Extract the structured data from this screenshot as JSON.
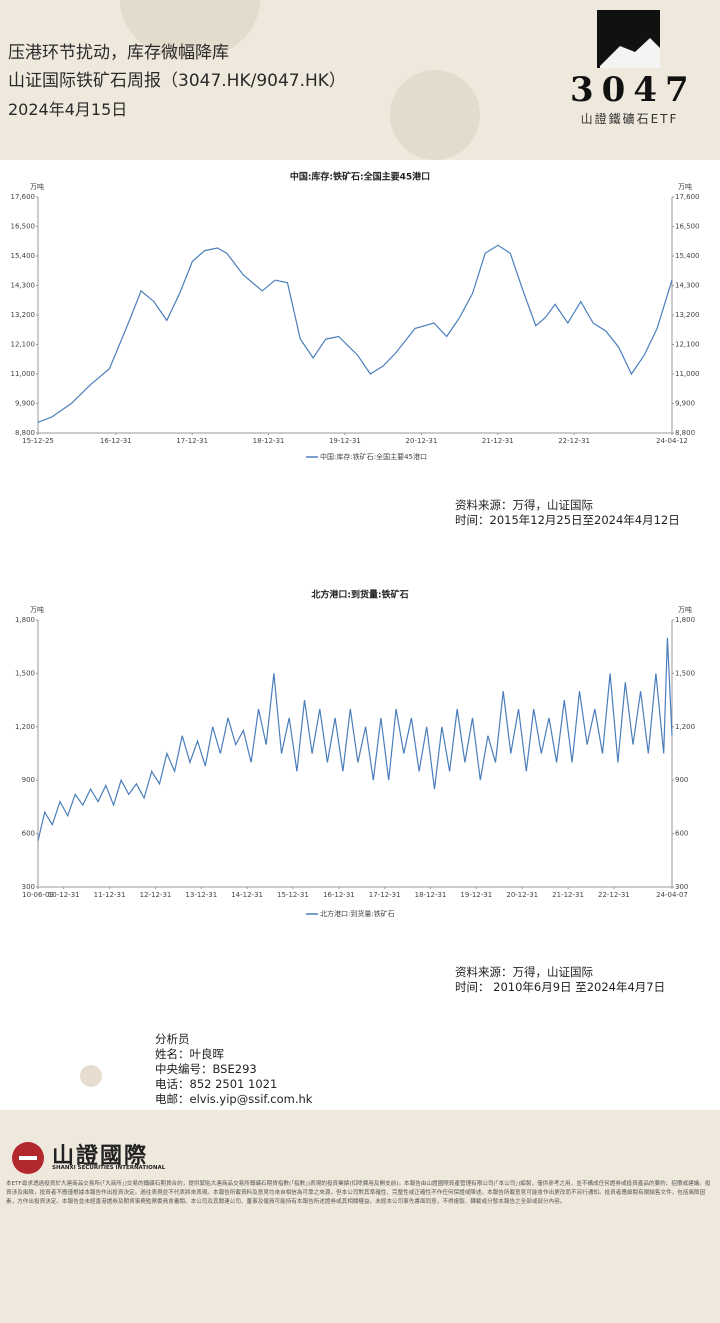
{
  "header": {
    "title": "压港环节扰动，库存微幅降库",
    "subtitle": "山证国际铁矿石周报（3047.HK/9047.HK）",
    "date": "2024年4月15日",
    "logo_code": "3047",
    "logo_name": "山證鐵礦石ETF"
  },
  "chart_data": [
    {
      "type": "line",
      "title": "中国:库存:铁矿石:全国主要45港口",
      "y_unit": "万吨",
      "xlim": [
        "2015-12-25",
        "2024-04-12"
      ],
      "xticks": [
        {
          "value": "2015-12-25",
          "label": "15-12-25"
        },
        {
          "value": "2016-12-31",
          "label": "16-12-31"
        },
        {
          "value": "2017-12-31",
          "label": "17-12-31"
        },
        {
          "value": "2018-12-31",
          "label": "18-12-31"
        },
        {
          "value": "2019-12-31",
          "label": "19-12-31"
        },
        {
          "value": "2020-12-31",
          "label": "20-12-31"
        },
        {
          "value": "2021-12-31",
          "label": "21-12-31"
        },
        {
          "value": "2022-12-31",
          "label": "22-12-31"
        },
        {
          "value": "2024-04-12",
          "label": "24-04-12"
        }
      ],
      "ylim": [
        8800,
        17600
      ],
      "yticks": [
        {
          "value": 8800,
          "label": "8,800"
        },
        {
          "value": 9900,
          "label": "9,900"
        },
        {
          "value": 11000,
          "label": "11,000"
        },
        {
          "value": 12100,
          "label": "12,100"
        },
        {
          "value": 13200,
          "label": "13,200"
        },
        {
          "value": 14300,
          "label": "14,300"
        },
        {
          "value": 15400,
          "label": "15,400"
        },
        {
          "value": 16500,
          "label": "16,500"
        },
        {
          "value": 17600,
          "label": "17,600"
        }
      ],
      "grid": false,
      "x": [
        "2015-12-25",
        "2016-03-01",
        "2016-06-01",
        "2016-09-01",
        "2016-12-01",
        "2017-03-01",
        "2017-05-01",
        "2017-07-01",
        "2017-09-01",
        "2017-11-01",
        "2018-01-01",
        "2018-03-01",
        "2018-05-01",
        "2018-06-15",
        "2018-09-01",
        "2018-12-01",
        "2019-02-01",
        "2019-04-01",
        "2019-06-01",
        "2019-08-01",
        "2019-10-01",
        "2019-12-01",
        "2020-03-01",
        "2020-05-01",
        "2020-07-01",
        "2020-09-01",
        "2020-12-01",
        "2021-03-01",
        "2021-05-01",
        "2021-07-01",
        "2021-09-01",
        "2021-11-01",
        "2022-01-01",
        "2022-03-01",
        "2022-05-01",
        "2022-07-01",
        "2022-08-15",
        "2022-10-01",
        "2022-12-01",
        "2023-02-01",
        "2023-04-01",
        "2023-06-01",
        "2023-08-01",
        "2023-10-01",
        "2023-12-01",
        "2024-02-01",
        "2024-04-12"
      ],
      "series": [
        {
          "name": "中国:库存:铁矿石:全国主要45港口",
          "color": "#4a7ebb",
          "values": [
            9200,
            9400,
            9900,
            10600,
            11200,
            12900,
            14100,
            13700,
            13000,
            14000,
            15200,
            15600,
            15700,
            15500,
            14700,
            14100,
            14500,
            14400,
            12300,
            11600,
            12300,
            12400,
            11700,
            11000,
            11300,
            11800,
            12700,
            12900,
            12400,
            13100,
            14000,
            15500,
            15800,
            15500,
            14100,
            12800,
            13100,
            13600,
            12900,
            13700,
            12900,
            12600,
            12000,
            11000,
            11700,
            12700,
            14500
          ]
        }
      ],
      "source": "资料来源：万得，山证国际",
      "period": "时间：2015年12月25日至2024年4月12日"
    },
    {
      "type": "line",
      "title": "北方港口:到货量:铁矿石",
      "y_unit": "万吨",
      "xlim": [
        "2010-06-09",
        "2024-04-07"
      ],
      "xticks": [
        {
          "value": "2010-06-09",
          "label": "10-06-09"
        },
        {
          "value": "2010-12-31",
          "label": "10-12-31"
        },
        {
          "value": "2011-12-31",
          "label": "11-12-31"
        },
        {
          "value": "2012-12-31",
          "label": "12-12-31"
        },
        {
          "value": "2013-12-31",
          "label": "13-12-31"
        },
        {
          "value": "2014-12-31",
          "label": "14-12-31"
        },
        {
          "value": "2015-12-31",
          "label": "15-12-31"
        },
        {
          "value": "2016-12-31",
          "label": "16-12-31"
        },
        {
          "value": "2017-12-31",
          "label": "17-12-31"
        },
        {
          "value": "2018-12-31",
          "label": "18-12-31"
        },
        {
          "value": "2019-12-31",
          "label": "19-12-31"
        },
        {
          "value": "2020-12-31",
          "label": "20-12-31"
        },
        {
          "value": "2021-12-31",
          "label": "21-12-31"
        },
        {
          "value": "2022-12-31",
          "label": "22-12-31"
        },
        {
          "value": "2024-04-07",
          "label": "24-04-07"
        }
      ],
      "ylim": [
        300,
        1800
      ],
      "yticks": [
        300,
        600,
        900,
        {
          "value": 1200,
          "label": "1,200"
        },
        {
          "value": 1500,
          "label": "1,500"
        },
        {
          "value": 1800,
          "label": "1,800"
        }
      ],
      "grid": false,
      "x": [
        "2010-06-09",
        "2010-08-01",
        "2010-10-01",
        "2010-12-01",
        "2011-02-01",
        "2011-04-01",
        "2011-06-01",
        "2011-08-01",
        "2011-10-01",
        "2011-12-01",
        "2012-02-01",
        "2012-04-01",
        "2012-06-01",
        "2012-08-01",
        "2012-10-01",
        "2012-12-01",
        "2013-02-01",
        "2013-04-01",
        "2013-06-01",
        "2013-08-01",
        "2013-10-01",
        "2013-12-01",
        "2014-02-01",
        "2014-04-01",
        "2014-06-01",
        "2014-08-01",
        "2014-10-01",
        "2014-12-01",
        "2015-02-01",
        "2015-04-01",
        "2015-06-01",
        "2015-08-01",
        "2015-10-01",
        "2015-12-01",
        "2016-02-01",
        "2016-04-01",
        "2016-06-01",
        "2016-08-01",
        "2016-10-01",
        "2016-12-01",
        "2017-02-01",
        "2017-04-01",
        "2017-06-01",
        "2017-08-01",
        "2017-10-01",
        "2017-12-01",
        "2018-02-01",
        "2018-04-01",
        "2018-06-01",
        "2018-08-01",
        "2018-10-01",
        "2018-12-01",
        "2019-02-01",
        "2019-04-01",
        "2019-06-01",
        "2019-08-01",
        "2019-10-01",
        "2019-12-01",
        "2020-02-01",
        "2020-04-01",
        "2020-06-01",
        "2020-08-01",
        "2020-10-01",
        "2020-12-01",
        "2021-02-01",
        "2021-04-01",
        "2021-06-01",
        "2021-08-01",
        "2021-10-01",
        "2021-12-01",
        "2022-02-01",
        "2022-04-01",
        "2022-06-01",
        "2022-08-01",
        "2022-10-01",
        "2022-12-01",
        "2023-02-01",
        "2023-04-01",
        "2023-06-01",
        "2023-08-01",
        "2023-10-01",
        "2023-12-01",
        "2024-02-01",
        "2024-03-01",
        "2024-04-07"
      ],
      "series": [
        {
          "name": "北方港口:到货量:铁矿石",
          "color": "#4a7ebb",
          "values": [
            560,
            720,
            650,
            780,
            700,
            820,
            760,
            850,
            780,
            870,
            760,
            900,
            820,
            880,
            800,
            950,
            880,
            1050,
            950,
            1150,
            1000,
            1120,
            980,
            1200,
            1050,
            1250,
            1100,
            1180,
            1000,
            1300,
            1100,
            1500,
            1050,
            1250,
            950,
            1350,
            1050,
            1300,
            1000,
            1250,
            950,
            1300,
            1000,
            1200,
            900,
            1250,
            900,
            1300,
            1050,
            1250,
            950,
            1200,
            850,
            1200,
            950,
            1300,
            1000,
            1250,
            900,
            1150,
            1000,
            1400,
            1050,
            1300,
            950,
            1300,
            1050,
            1250,
            1000,
            1350,
            1000,
            1400,
            1100,
            1300,
            1050,
            1500,
            1000,
            1450,
            1100,
            1400,
            1050,
            1500,
            1050,
            1700,
            1150
          ]
        }
      ],
      "source": "资料来源：万得，山证国际",
      "period": "时间： 2010年6月9日 至2024年4月7日"
    }
  ],
  "analyst": {
    "heading": "分析员",
    "name": "姓名：叶良晖",
    "code": "中央编号：BSE293",
    "phone": "电话：852 2501 1021",
    "email": "电邮：elvis.yip@ssif.com.hk"
  },
  "footer": {
    "brand": "山證國際",
    "brand_en": "SHANXI SECURITIES INTERNATIONAL",
    "disclaimer": "本ETF尋求透過投資於大連商品交易所(「大商所」)交易的鐵礦石期貨合約，提供緊貼大連商品交易所鐵礦石期貨指數(「指數」)表現的投資業績(扣除費用及開支前)。本報告由山證國際資產管理有限公司(「本公司」)編製，僅供參考之用，並不構成任何證券或投資產品的要約、招攬或建議。投資涉及風險，投資者不應僅根據本報告作出投資決定。過往表現並不代表將來表現。本報告所載資料及意見均來自相信為可靠之來源，但本公司對其準確性、完整性或正確性不作任何保證或陳述。本報告所載意見可能會作出更改而不另行通知。投資者應細閱有關銷售文件，包括風險因素，方作出投資決定。本報告並未經香港證券及期貨事務監察委員會審閱。本公司及其關連公司、董事及僱員可能持有本報告所述證券或其相關權益。未經本公司事先書面同意，不得複製、轉載或分發本報告之全部或部分內容。"
  }
}
